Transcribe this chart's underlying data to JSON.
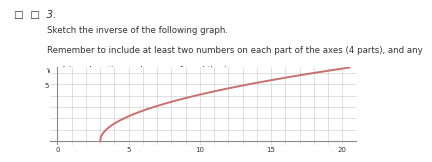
{
  "title_number": "3.",
  "instruction_line1": "Sketch the inverse of the following graph.",
  "instruction_line2": "Remember to include at least two numbers on each part of the axes (4 parts), and any",
  "instruction_line3": "work/ explanation on how you found the inverse.",
  "xlim": [
    -0.5,
    21
  ],
  "ylim": [
    -0.3,
    6.5
  ],
  "xticks": [
    0,
    5,
    10,
    15,
    20
  ],
  "yticks": [
    5
  ],
  "curve_color": "#c97070",
  "curve_x_start": 3.0,
  "curve_x_end": 20.5,
  "curve_scale": 1.55,
  "bg_color": "#ffffff",
  "grid_color": "#c8c8c8",
  "grid_major_color": "#bbbbbb",
  "axis_color": "#888888",
  "text_color": "#333333",
  "font_size_instruction": 6.2,
  "font_size_number": 7.5,
  "font_size_tick": 5.0
}
